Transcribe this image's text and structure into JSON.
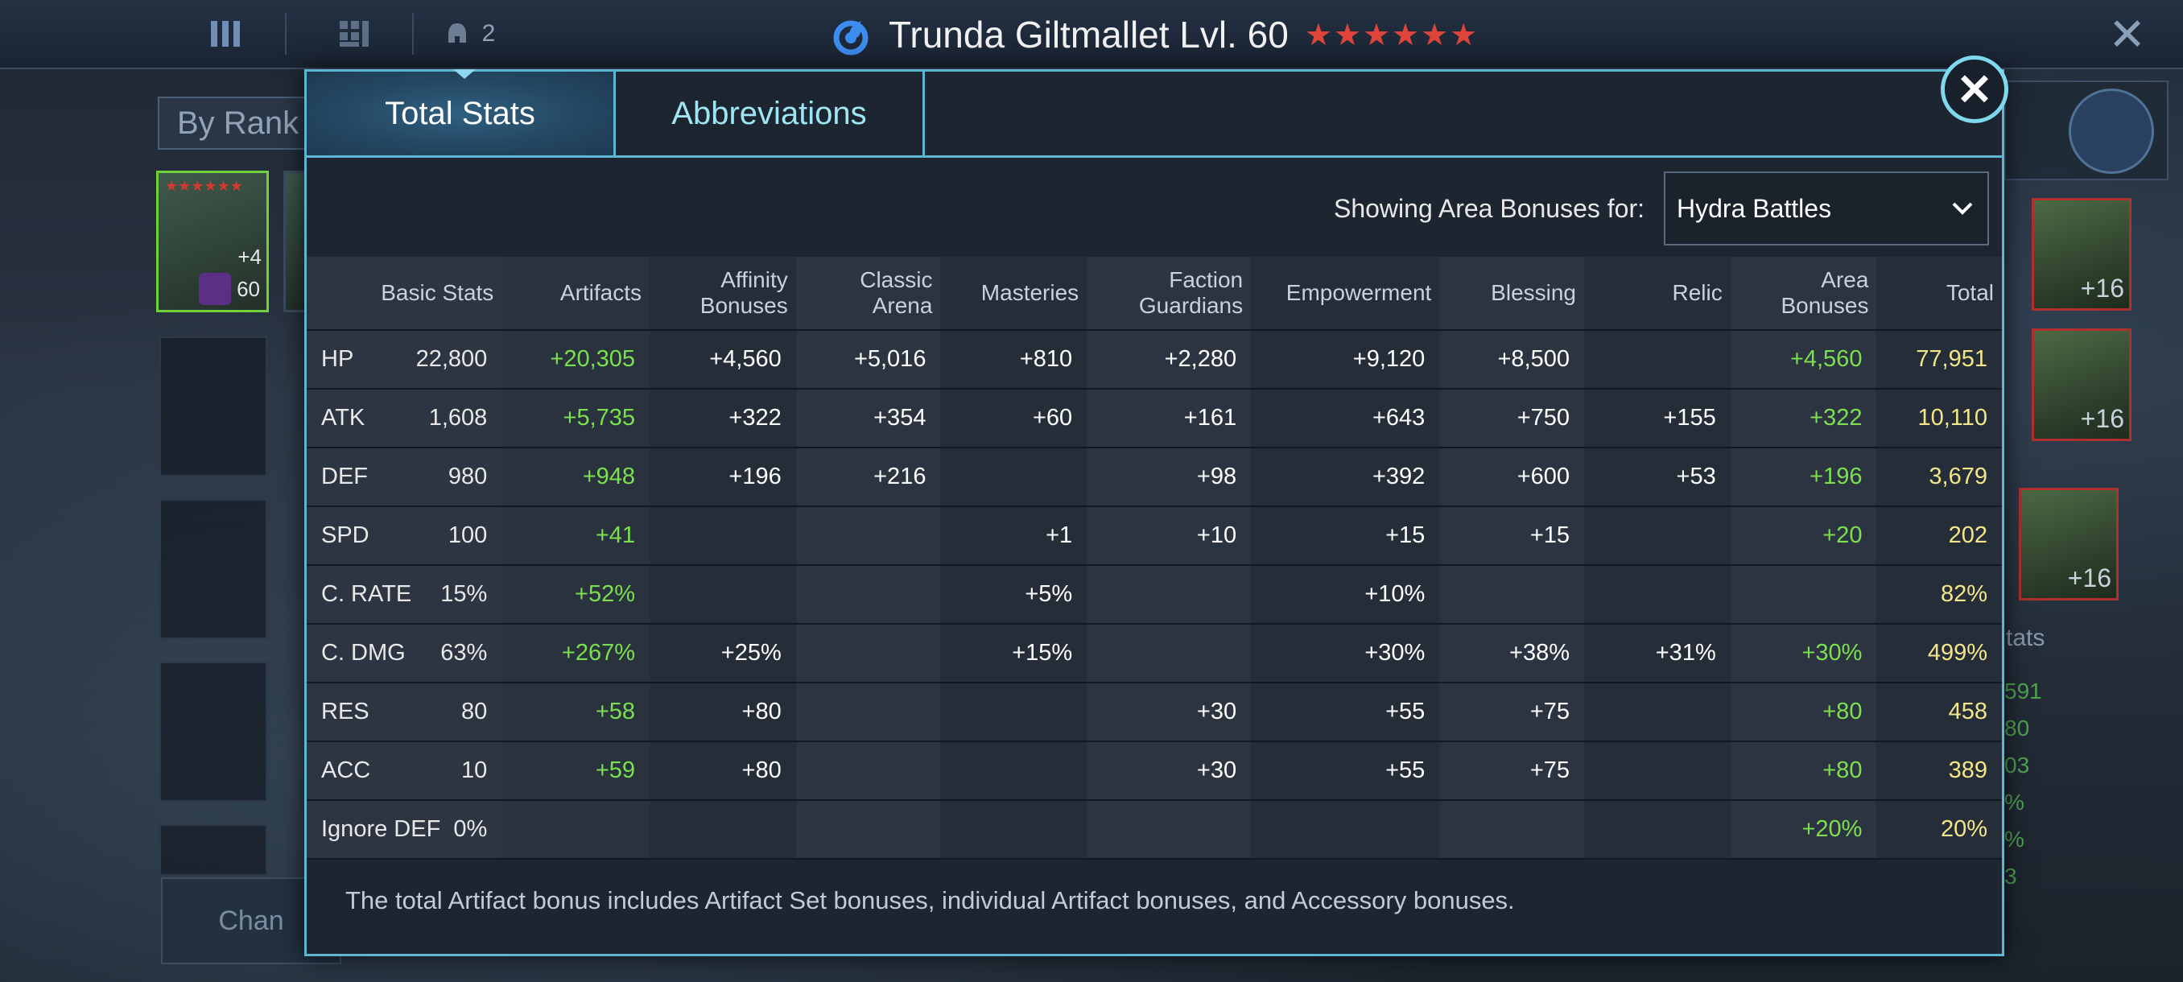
{
  "topbar": {
    "team_count": "2"
  },
  "hero": {
    "name": "Trunda Giltmallet Lvl. 60",
    "stars": "★★★★★★"
  },
  "background": {
    "by_rank": "By Rank",
    "card_level": "60",
    "card_bonus": "+4",
    "right_card_level": "+16",
    "right_stats_label": "tats",
    "right_nums": [
      "591",
      "80",
      "03",
      "%",
      "%",
      "3"
    ],
    "change_button": "Chan"
  },
  "modal": {
    "tabs": [
      {
        "label": "Total Stats",
        "active": true
      },
      {
        "label": "Abbreviations",
        "active": false
      }
    ],
    "filter": {
      "label": "Showing Area Bonuses for:",
      "selected": "Hydra Battles"
    },
    "columns": [
      "Basic Stats",
      "Artifacts",
      "Affinity\nBonuses",
      "Classic\nArena",
      "Masteries",
      "Faction\nGuardians",
      "Empowerment",
      "Blessing",
      "Relic",
      "Area\nBonuses",
      "Total"
    ],
    "rows": [
      {
        "stat": "HP",
        "basic": "22,800",
        "artifacts": "+20,305",
        "affinity": "+4,560",
        "arena": "+5,016",
        "masteries": "+810",
        "faction": "+2,280",
        "empowerment": "+9,120",
        "blessing": "+8,500",
        "relic": "",
        "area": "+4,560",
        "total": "77,951"
      },
      {
        "stat": "ATK",
        "basic": "1,608",
        "artifacts": "+5,735",
        "affinity": "+322",
        "arena": "+354",
        "masteries": "+60",
        "faction": "+161",
        "empowerment": "+643",
        "blessing": "+750",
        "relic": "+155",
        "area": "+322",
        "total": "10,110"
      },
      {
        "stat": "DEF",
        "basic": "980",
        "artifacts": "+948",
        "affinity": "+196",
        "arena": "+216",
        "masteries": "",
        "faction": "+98",
        "empowerment": "+392",
        "blessing": "+600",
        "relic": "+53",
        "area": "+196",
        "total": "3,679"
      },
      {
        "stat": "SPD",
        "basic": "100",
        "artifacts": "+41",
        "affinity": "",
        "arena": "",
        "masteries": "+1",
        "faction": "+10",
        "empowerment": "+15",
        "blessing": "+15",
        "relic": "",
        "area": "+20",
        "total": "202"
      },
      {
        "stat": "C. RATE",
        "basic": "15%",
        "artifacts": "+52%",
        "affinity": "",
        "arena": "",
        "masteries": "+5%",
        "faction": "",
        "empowerment": "+10%",
        "blessing": "",
        "relic": "",
        "area": "",
        "total": "82%"
      },
      {
        "stat": "C. DMG",
        "basic": "63%",
        "artifacts": "+267%",
        "affinity": "+25%",
        "arena": "",
        "masteries": "+15%",
        "faction": "",
        "empowerment": "+30%",
        "blessing": "+38%",
        "relic": "+31%",
        "area": "+30%",
        "total": "499%"
      },
      {
        "stat": "RES",
        "basic": "80",
        "artifacts": "+58",
        "affinity": "+80",
        "arena": "",
        "masteries": "",
        "faction": "+30",
        "empowerment": "+55",
        "blessing": "+75",
        "relic": "",
        "area": "+80",
        "total": "458"
      },
      {
        "stat": "ACC",
        "basic": "10",
        "artifacts": "+59",
        "affinity": "+80",
        "arena": "",
        "masteries": "",
        "faction": "+30",
        "empowerment": "+55",
        "blessing": "+75",
        "relic": "",
        "area": "+80",
        "total": "389"
      },
      {
        "stat": "Ignore DEF",
        "basic": "0%",
        "artifacts": "",
        "affinity": "",
        "arena": "",
        "masteries": "",
        "faction": "",
        "empowerment": "",
        "blessing": "",
        "relic": "",
        "area": "+20%",
        "total": "20%"
      }
    ],
    "footnote": "The total Artifact bonus includes Artifact Set bonuses, individual Artifact bonuses, and Accessory bonuses."
  },
  "colors": {
    "accent": "#5fb6d2",
    "bonus_green": "#7be04f",
    "total_yellow": "#f3e58a",
    "star_red": "#e0453a"
  }
}
